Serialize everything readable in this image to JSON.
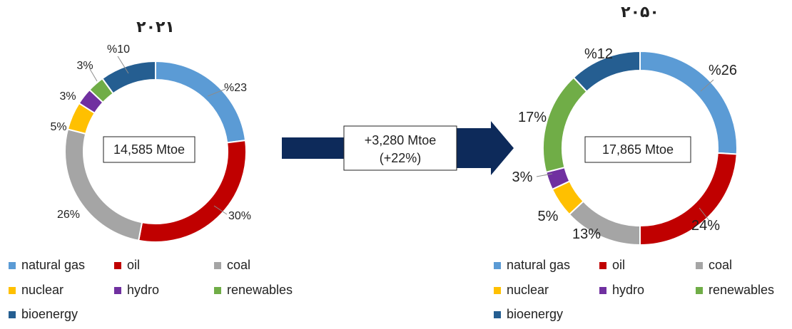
{
  "colors": {
    "natural gas": "#5B9BD5",
    "oil": "#C00000",
    "coal": "#A5A5A5",
    "nuclear": "#FFC000",
    "hydro": "#7030A0",
    "renewables": "#70AD47",
    "bioenergy": "#255E91"
  },
  "arrow": {
    "line1": "+3,280 Mtoe",
    "line2": "(+22%)"
  },
  "chart_data": [
    {
      "type": "pie",
      "title": "۲۰۲۱",
      "center_label": "14,585 Mtoe",
      "slices": [
        {
          "name": "natural gas",
          "value": 23,
          "label": "%23"
        },
        {
          "name": "oil",
          "value": 30,
          "label": "30%"
        },
        {
          "name": "coal",
          "value": 26,
          "label": "26%"
        },
        {
          "name": "nuclear",
          "value": 5,
          "label": "5%"
        },
        {
          "name": "hydro",
          "value": 3,
          "label": "3%"
        },
        {
          "name": "renewables",
          "value": 3,
          "label": "3%"
        },
        {
          "name": "bioenergy",
          "value": 10,
          "label": "%10"
        }
      ],
      "legend": [
        "natural gas",
        "oil",
        "coal",
        "nuclear",
        "hydro",
        "renewables",
        "bioenergy"
      ]
    },
    {
      "type": "pie",
      "title": "۲۰۵۰",
      "center_label": "17,865 Mtoe",
      "slices": [
        {
          "name": "natural gas",
          "value": 26,
          "label": "%26"
        },
        {
          "name": "oil",
          "value": 24,
          "label": "24%"
        },
        {
          "name": "coal",
          "value": 13,
          "label": "13%"
        },
        {
          "name": "nuclear",
          "value": 5,
          "label": "5%"
        },
        {
          "name": "hydro",
          "value": 3,
          "label": "3%"
        },
        {
          "name": "renewables",
          "value": 17,
          "label": "17%"
        },
        {
          "name": "bioenergy",
          "value": 12,
          "label": "%12"
        }
      ],
      "legend": [
        "natural gas",
        "oil",
        "coal",
        "nuclear",
        "hydro",
        "renewables",
        "bioenergy"
      ]
    }
  ]
}
